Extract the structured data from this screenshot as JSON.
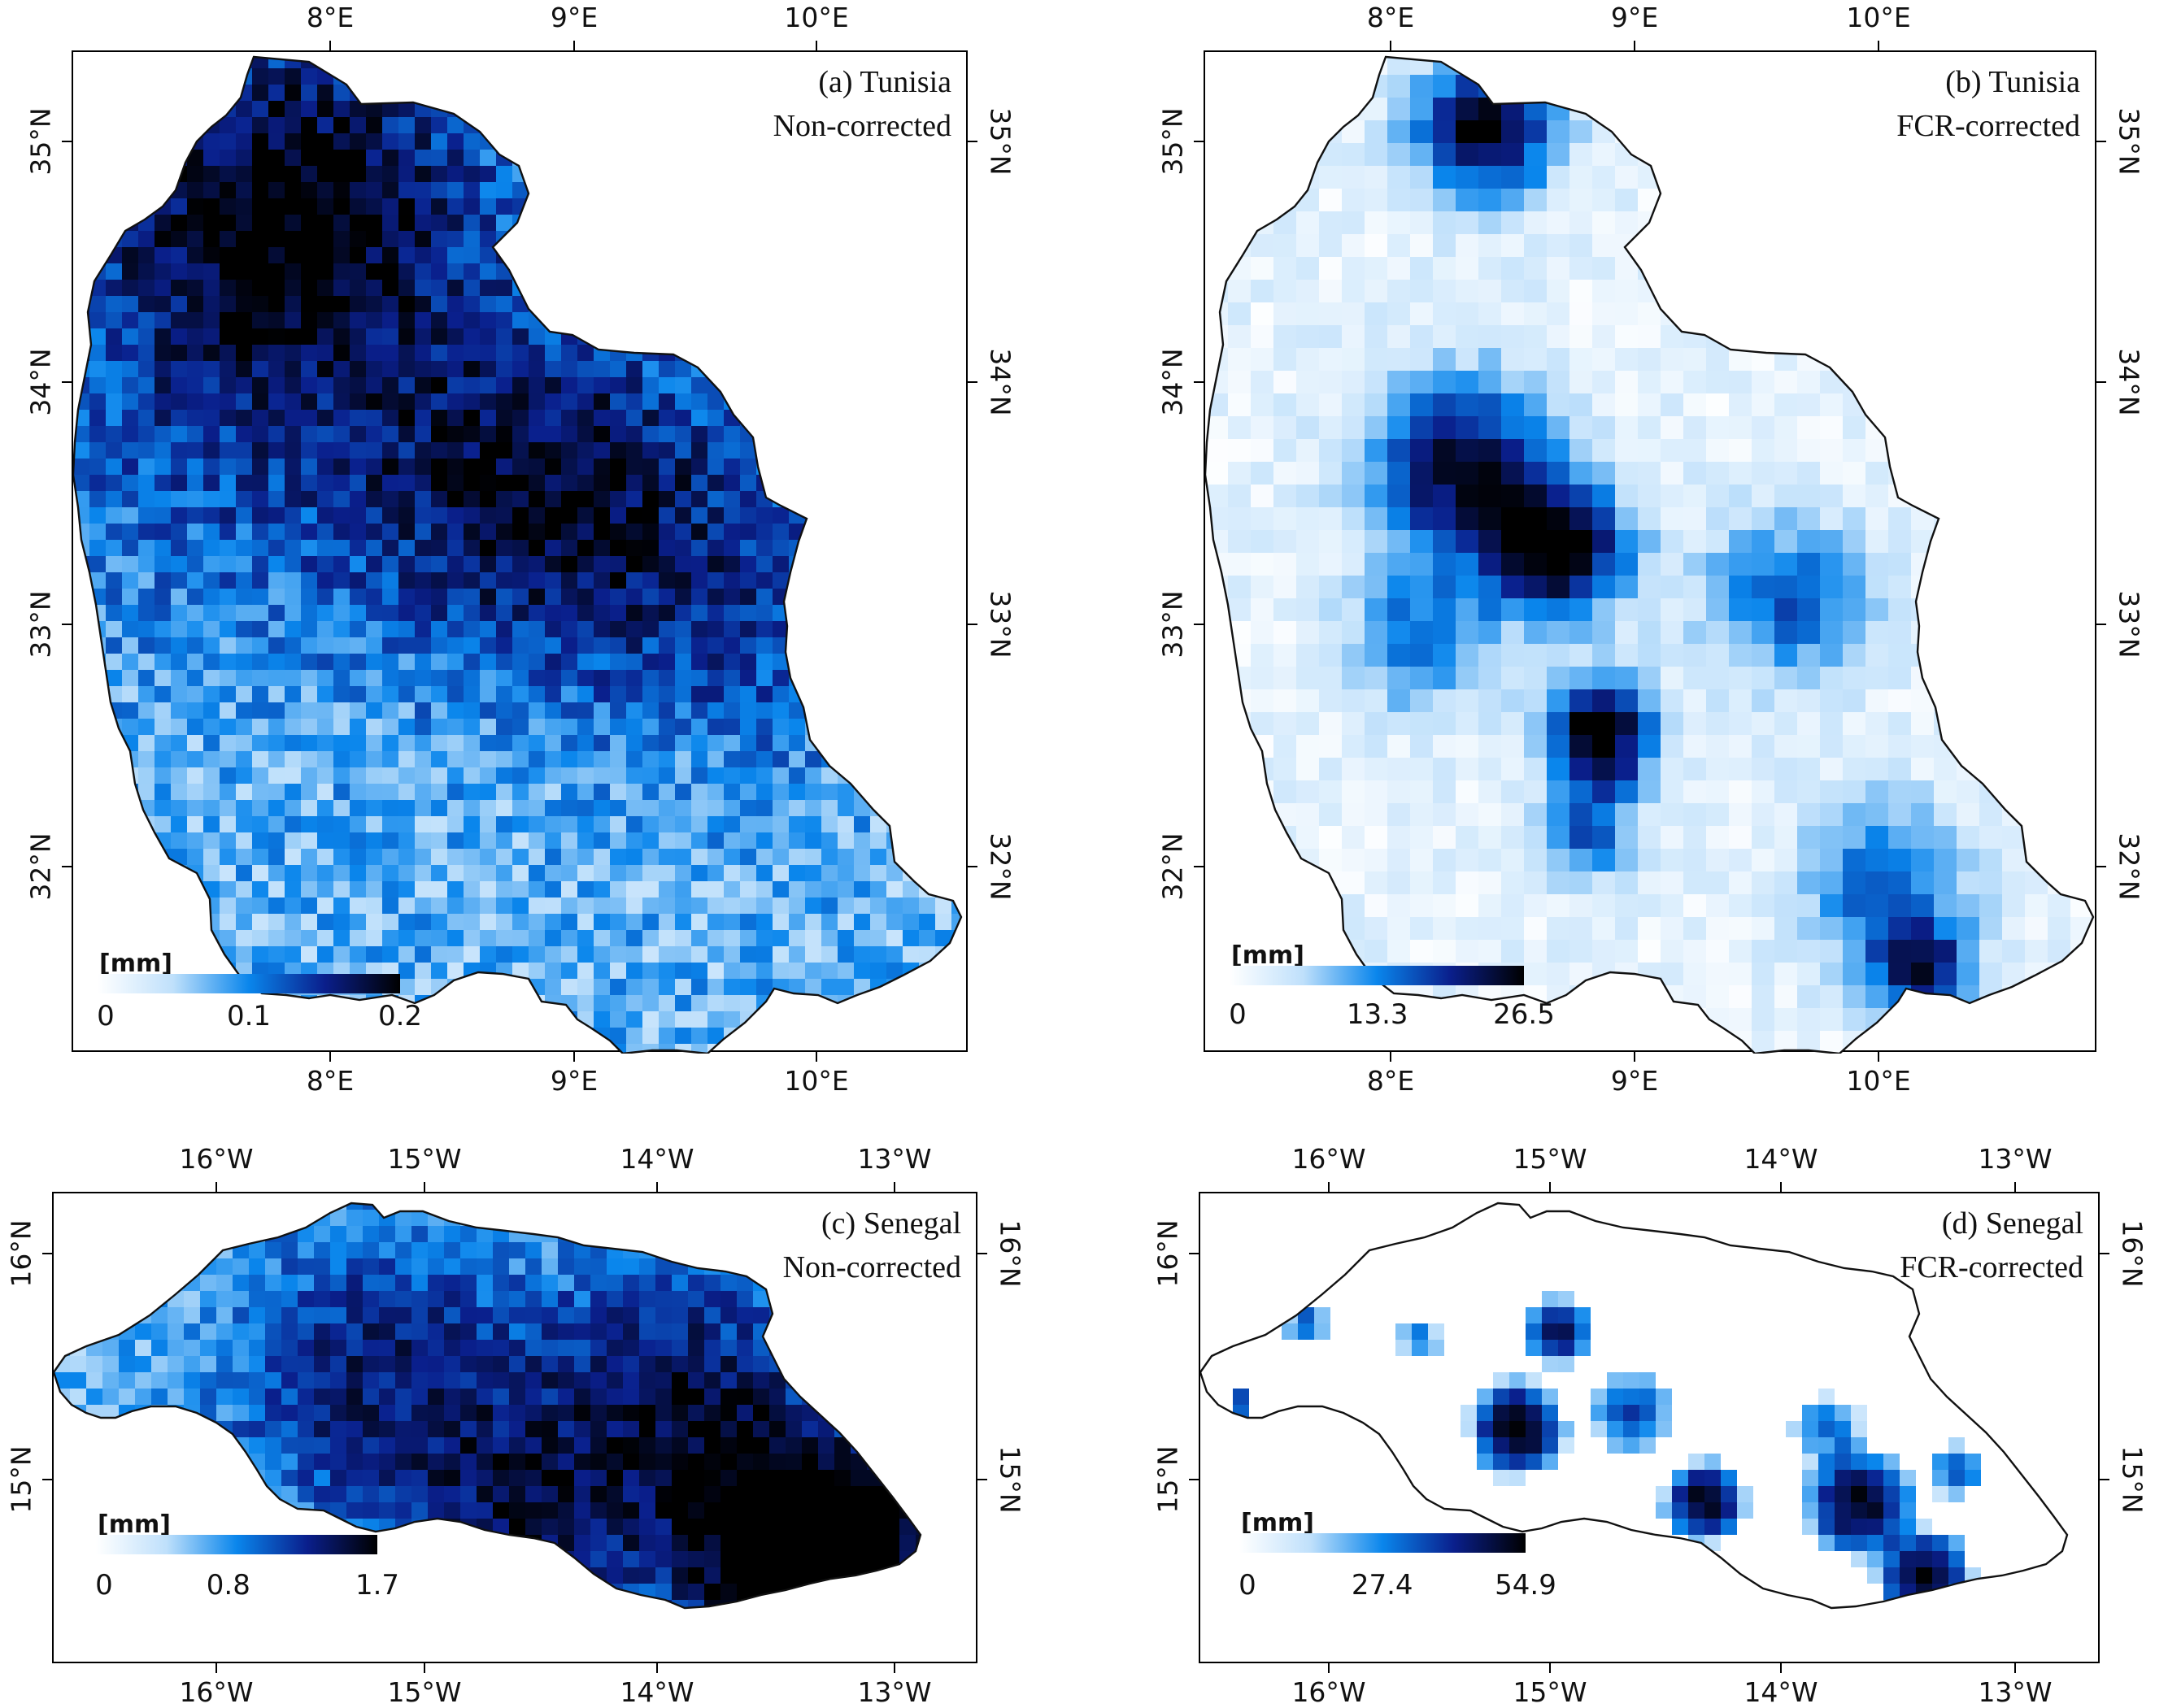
{
  "colors": {
    "ramp": [
      "#ffffff",
      "#bfe0fb",
      "#0a86ec",
      "#0a1f8c",
      "#000000"
    ],
    "outline": "#111111"
  },
  "panels": [
    {
      "id": "a",
      "title_line1": "(a) Tunisia",
      "title_line2": "Non-corrected",
      "lon_ticks": [
        "8°E",
        "9°E",
        "10°E"
      ],
      "lat_ticks": [
        "35°N",
        "34°N",
        "33°N",
        "32°N"
      ],
      "colorbar": {
        "unit": "[mm]",
        "labels": [
          "0",
          "0.1",
          "0.2"
        ],
        "min": 0,
        "mid": 0.1,
        "max": 0.2
      }
    },
    {
      "id": "b",
      "title_line1": "(b) Tunisia",
      "title_line2": "FCR-corrected",
      "lon_ticks": [
        "8°E",
        "9°E",
        "10°E"
      ],
      "lat_ticks": [
        "35°N",
        "34°N",
        "33°N",
        "32°N"
      ],
      "colorbar": {
        "unit": "[mm]",
        "labels": [
          "0",
          "13.3",
          "26.5"
        ],
        "min": 0,
        "mid": 13.3,
        "max": 26.5
      }
    },
    {
      "id": "c",
      "title_line1": "(c) Senegal",
      "title_line2": "Non-corrected",
      "lon_ticks": [
        "16°W",
        "15°W",
        "14°W",
        "13°W"
      ],
      "lat_ticks": [
        "16°N",
        "15°N"
      ],
      "colorbar": {
        "unit": "[mm]",
        "labels": [
          "0",
          "0.8",
          "1.7"
        ],
        "min": 0,
        "mid": 0.8,
        "max": 1.7
      }
    },
    {
      "id": "d",
      "title_line1": "(d) Senegal",
      "title_line2": "FCR-corrected",
      "lon_ticks": [
        "16°W",
        "15°W",
        "14°W",
        "13°W"
      ],
      "lat_ticks": [
        "16°N",
        "15°N"
      ],
      "colorbar": {
        "unit": "[mm]",
        "labels": [
          "0",
          "27.4",
          "54.9"
        ],
        "min": 0,
        "mid": 27.4,
        "max": 54.9
      }
    }
  ]
}
